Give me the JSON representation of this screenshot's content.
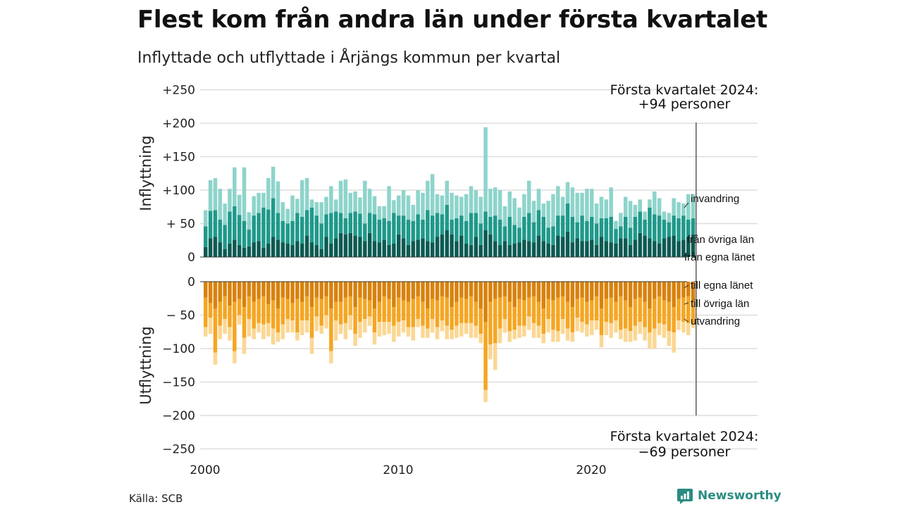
{
  "title": "Flest kom från andra län under första kvartalet",
  "subtitle": "Inflyttade och utflyttade i Årjängs kommun per kvartal",
  "source": "Källa: SCB",
  "brand": "Newsworthy",
  "colors": {
    "in_own": "#0c5a52",
    "in_other": "#1f998b",
    "in_imm": "#8ed4cb",
    "out_own": "#d9820d",
    "out_other": "#f5a623",
    "out_emi": "#fbd794",
    "grid": "#dddddd",
    "text": "#222222",
    "brand": "#2a8c82"
  },
  "chart_data": {
    "type": "bar",
    "stacked": true,
    "x_start": "2000 Q1",
    "x_ticks": [
      "2000",
      "2010",
      "2020"
    ],
    "top_panel": {
      "ylabel": "Inflyttning",
      "yticks": [
        "+250",
        "+200",
        "+150",
        "+100",
        "+ 50",
        "0"
      ],
      "ylim": [
        0,
        250
      ],
      "annotation": [
        "Första kvartalet 2024:",
        "+94 personer"
      ],
      "series": [
        {
          "name": "från egna länet",
          "values": [
            15,
            28,
            30,
            22,
            12,
            20,
            26,
            18,
            14,
            16,
            22,
            24,
            14,
            20,
            30,
            26,
            22,
            20,
            18,
            24,
            20,
            32,
            22,
            18,
            12,
            30,
            20,
            28,
            36,
            34,
            36,
            32,
            30,
            24,
            36,
            24,
            22,
            26,
            18,
            20,
            34,
            28,
            18,
            24,
            26,
            28,
            24,
            22,
            30,
            34,
            40,
            34,
            24,
            32,
            20,
            18,
            30,
            18,
            40,
            34,
            24,
            18,
            24,
            18,
            20,
            22,
            26,
            24,
            22,
            32,
            24,
            20,
            18,
            32,
            30,
            38,
            22,
            28,
            24,
            24,
            26,
            18,
            30,
            24,
            22,
            20,
            28,
            28,
            18,
            26,
            36,
            32,
            28,
            24,
            20,
            28,
            30,
            32,
            24,
            26,
            30,
            34
          ]
        },
        {
          "name": "från övriga län",
          "values": [
            31,
            41,
            40,
            34,
            36,
            48,
            50,
            45,
            40,
            25,
            40,
            42,
            60,
            51,
            58,
            40,
            32,
            30,
            36,
            42,
            40,
            38,
            52,
            44,
            38,
            34,
            46,
            40,
            30,
            24,
            30,
            36,
            35,
            26,
            30,
            40,
            34,
            32,
            36,
            46,
            28,
            34,
            38,
            30,
            38,
            28,
            46,
            40,
            36,
            30,
            38,
            22,
            34,
            30,
            34,
            48,
            36,
            32,
            28,
            26,
            38,
            38,
            22,
            42,
            28,
            22,
            34,
            42,
            30,
            38,
            36,
            24,
            28,
            30,
            32,
            42,
            38,
            24,
            38,
            30,
            34,
            32,
            28,
            34,
            38,
            22,
            18,
            32,
            26,
            34,
            32,
            24,
            46,
            40,
            42,
            28,
            22,
            30,
            34,
            36,
            26,
            24
          ]
        },
        {
          "name": "invandring",
          "values": [
            24,
            46,
            48,
            46,
            32,
            34,
            58,
            30,
            80,
            26,
            29,
            30,
            22,
            47,
            47,
            47,
            28,
            22,
            38,
            21,
            55,
            48,
            12,
            20,
            32,
            26,
            40,
            18,
            48,
            58,
            30,
            30,
            24,
            64,
            36,
            27,
            20,
            18,
            52,
            19,
            30,
            38,
            36,
            24,
            36,
            40,
            44,
            62,
            28,
            28,
            36,
            40,
            34,
            28,
            40,
            40,
            34,
            40,
            126,
            42,
            42,
            44,
            30,
            38,
            40,
            30,
            34,
            48,
            32,
            32,
            20,
            40,
            48,
            44,
            28,
            32,
            44,
            44,
            34,
            48,
            42,
            30,
            32,
            28,
            44,
            12,
            20,
            30,
            40,
            18,
            18,
            12,
            12,
            34,
            26,
            12,
            14,
            26,
            24,
            18,
            38,
            36
          ]
        }
      ]
    },
    "bottom_panel": {
      "ylabel": "Utflyttning",
      "yticks": [
        "0",
        "− 50",
        "−100",
        "−150",
        "−200",
        "−250"
      ],
      "ylim": [
        -250,
        0
      ],
      "annotation": [
        "Första kvartalet 2024:",
        "−69 personer"
      ],
      "series": [
        {
          "name": "till egna länet",
          "values": [
            -24,
            -32,
            -40,
            -30,
            -22,
            -36,
            -30,
            -26,
            -38,
            -22,
            -30,
            -26,
            -22,
            -34,
            -28,
            -40,
            -24,
            -26,
            -32,
            -26,
            -30,
            -22,
            -38,
            -24,
            -26,
            -22,
            -40,
            -30,
            -30,
            -24,
            -22,
            -38,
            -24,
            -26,
            -28,
            -40,
            -30,
            -22,
            -26,
            -38,
            -24,
            -28,
            -30,
            -26,
            -22,
            -30,
            -40,
            -26,
            -28,
            -22,
            -24,
            -38,
            -30,
            -24,
            -26,
            -22,
            -30,
            -40,
            -60,
            -30,
            -26,
            -24,
            -22,
            -30,
            -38,
            -26,
            -28,
            -24,
            -22,
            -30,
            -40,
            -26,
            -28,
            -24,
            -22,
            -30,
            -38,
            -26,
            -24,
            -30,
            -28,
            -22,
            -40,
            -26,
            -24,
            -30,
            -22,
            -28,
            -38,
            -26,
            -24,
            -30,
            -40,
            -26,
            -22,
            -28,
            -30,
            -38,
            -26,
            -24,
            -22,
            -30
          ]
        },
        {
          "name": "till övriga län",
          "values": [
            -44,
            -22,
            -66,
            -36,
            -34,
            -32,
            -74,
            -24,
            -46,
            -34,
            -40,
            -36,
            -42,
            -28,
            -42,
            -36,
            -40,
            -30,
            -26,
            -50,
            -28,
            -36,
            -46,
            -28,
            -40,
            -28,
            -64,
            -28,
            -34,
            -38,
            -28,
            -40,
            -36,
            -30,
            -24,
            -36,
            -30,
            -38,
            -34,
            -28,
            -36,
            -30,
            -38,
            -42,
            -34,
            -36,
            -30,
            -30,
            -40,
            -36,
            -42,
            -34,
            -36,
            -38,
            -36,
            -40,
            -36,
            -38,
            -102,
            -64,
            -66,
            -46,
            -34,
            -44,
            -34,
            -40,
            -38,
            -28,
            -40,
            -36,
            -38,
            -30,
            -44,
            -50,
            -34,
            -40,
            -38,
            -28,
            -36,
            -34,
            -30,
            -36,
            -40,
            -34,
            -38,
            -28,
            -50,
            -42,
            -36,
            -40,
            -36,
            -38,
            -36,
            -44,
            -40,
            -36,
            -44,
            -38,
            -32,
            -36,
            -40,
            -34
          ]
        },
        {
          "name": "utvandring",
          "values": [
            -14,
            -24,
            -18,
            -20,
            -22,
            -20,
            -18,
            -14,
            -24,
            -26,
            -16,
            -14,
            -22,
            -20,
            -24,
            -14,
            -22,
            -20,
            -18,
            -12,
            -22,
            -18,
            -24,
            -22,
            -12,
            -20,
            -18,
            -30,
            -14,
            -24,
            -22,
            -18,
            -24,
            -20,
            -14,
            -18,
            -22,
            -20,
            -18,
            -24,
            -22,
            -18,
            -14,
            -20,
            -12,
            -18,
            -14,
            -20,
            -18,
            -16,
            -20,
            -14,
            -18,
            -20,
            -16,
            -22,
            -18,
            -14,
            -18,
            -22,
            -40,
            -22,
            -20,
            -16,
            -14,
            -18,
            -16,
            -20,
            -22,
            -18,
            -14,
            -20,
            -18,
            -16,
            -22,
            -18,
            -14,
            -20,
            -16,
            -18,
            -22,
            -14,
            -18,
            -20,
            -22,
            -18,
            -14,
            -20,
            -16,
            -22,
            -18,
            -20,
            -24,
            -30,
            -18,
            -20,
            -22,
            -30,
            -14,
            -16,
            -18,
            -5
          ]
        }
      ]
    }
  }
}
